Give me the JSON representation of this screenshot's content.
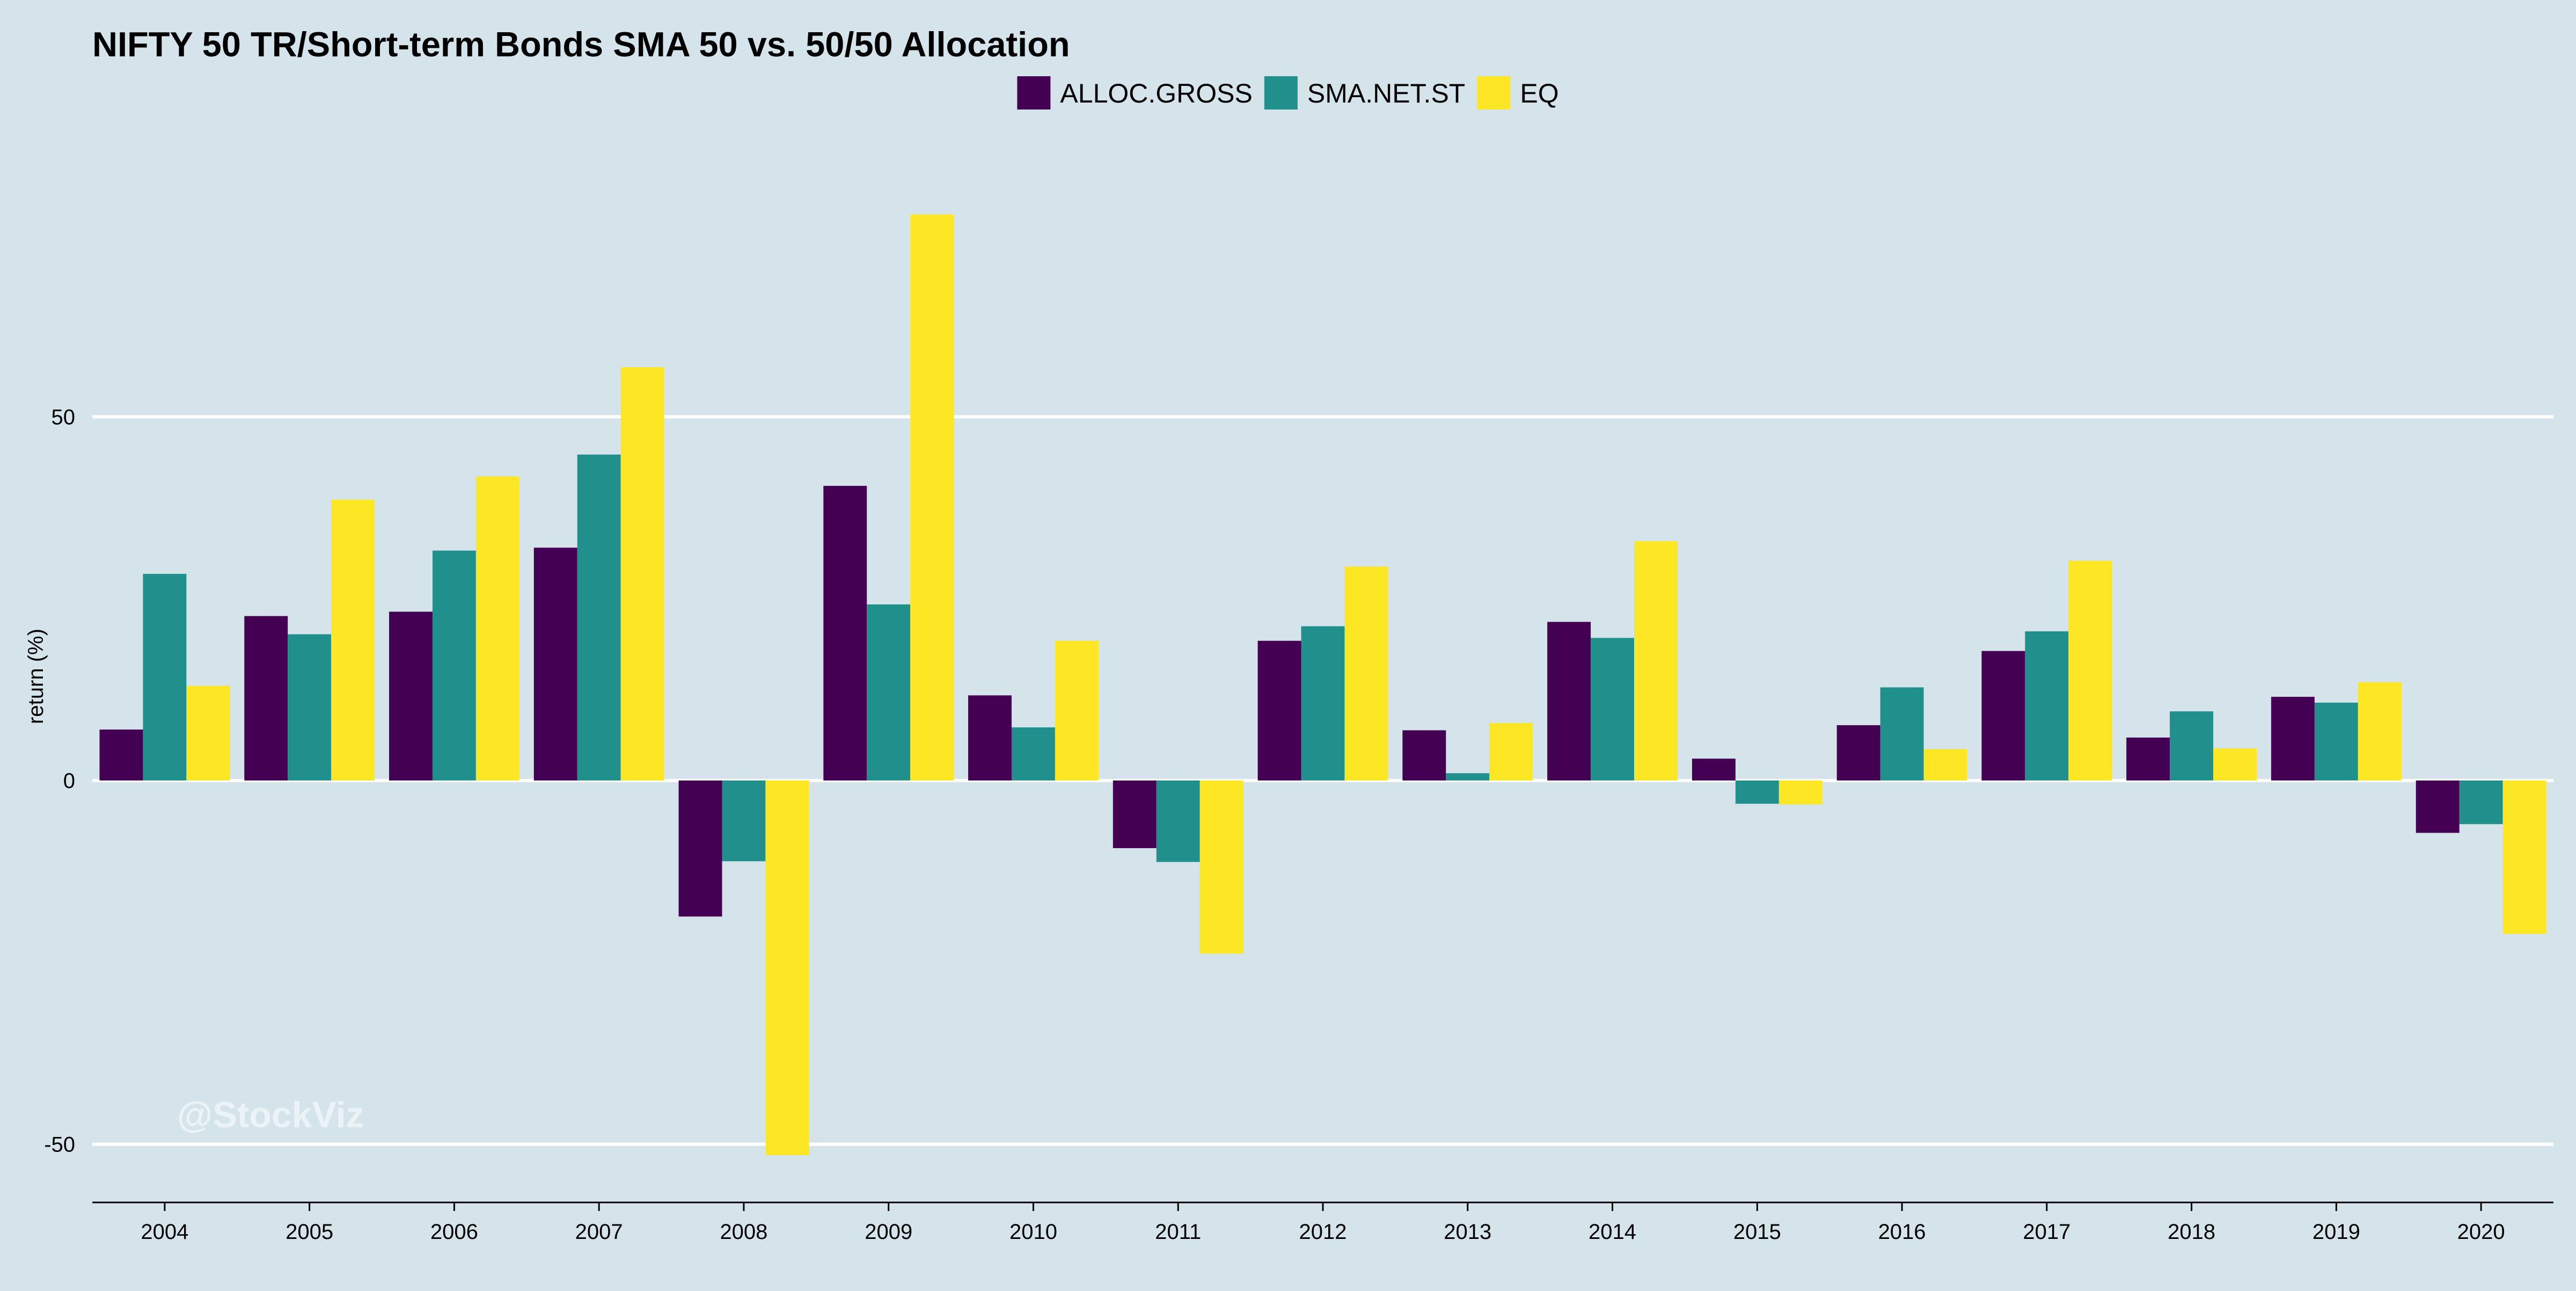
{
  "chart_data": {
    "type": "bar",
    "title": "NIFTY 50 TR/Short-term Bonds SMA 50 vs. 50/50 Allocation",
    "xlabel": "",
    "ylabel": "return (%)",
    "ylim": [
      -58,
      94
    ],
    "yticks": [
      -50,
      0,
      50
    ],
    "grid": true,
    "legend_position": "top",
    "watermark": "@StockViz",
    "categories": [
      "2004",
      "2005",
      "2006",
      "2007",
      "2008",
      "2009",
      "2010",
      "2011",
      "2012",
      "2013",
      "2014",
      "2015",
      "2016",
      "2017",
      "2018",
      "2019",
      "2020"
    ],
    "series": [
      {
        "name": "ALLOC.GROSS",
        "color": "#440154",
        "values": [
          7.0,
          22.6,
          23.2,
          32.0,
          -18.7,
          40.5,
          11.7,
          -9.3,
          19.2,
          6.9,
          21.8,
          3.0,
          7.6,
          17.8,
          5.9,
          11.5,
          -7.2
        ]
      },
      {
        "name": "SMA.NET.ST",
        "color": "#21908c",
        "values": [
          28.4,
          20.1,
          31.6,
          44.8,
          -11.1,
          24.2,
          7.3,
          -11.2,
          21.2,
          1.0,
          19.6,
          -3.2,
          12.8,
          20.5,
          9.5,
          10.7,
          -6.0
        ]
      },
      {
        "name": "EQ",
        "color": "#fde725",
        "values": [
          13.0,
          38.6,
          41.8,
          56.8,
          -51.5,
          77.8,
          19.2,
          -23.8,
          29.4,
          7.9,
          32.9,
          -3.3,
          4.3,
          30.2,
          4.4,
          13.5,
          -21.1
        ]
      }
    ]
  }
}
